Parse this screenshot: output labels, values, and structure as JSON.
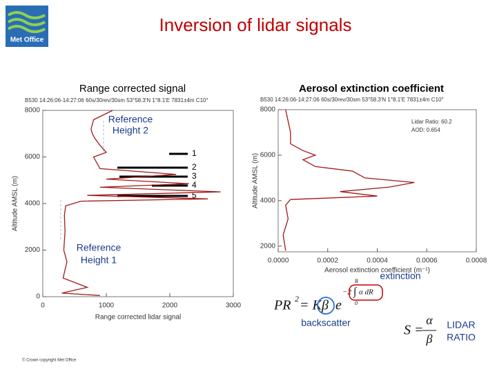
{
  "slide": {
    "title": "Inversion of lidar signals",
    "logo": "Met Office",
    "left_heading": "Range corrected signal",
    "right_heading": "Aerosol extinction coefficient",
    "ref2": [
      "Reference",
      "Height 2"
    ],
    "ref1": [
      "Reference",
      "Height 1"
    ],
    "layer_labels": [
      "1",
      "2",
      "3",
      "4",
      "5"
    ],
    "extinction": "extinction",
    "backscatter": "backscatter",
    "lidar_ratio": [
      "LIDAR",
      "RATIO"
    ],
    "equation": [
      "PR",
      "2",
      "= K",
      "β",
      "e",
      "R",
      "−2",
      "∫",
      "α dR",
      "0"
    ],
    "ratio_equation": [
      "S =",
      "α",
      "β"
    ],
    "copyright": "© Crown copyright   Met Office"
  },
  "chart_data": [
    {
      "type": "line",
      "header": "B530 14:26:06-14:27:06 60s/30rev/30sm 53°58.3'N 1°8.1'E 7831±4m C10°",
      "xlabel": "Range corrected lidar signal",
      "ylabel": "Altitude AMSL (m)",
      "color": "#a01818",
      "x": [
        900,
        300,
        700,
        320,
        380,
        330,
        350,
        340,
        360,
        600,
        2600,
        700,
        2800,
        900,
        2300,
        1000,
        2100,
        900,
        800,
        1000,
        900,
        820,
        780,
        760,
        800,
        1100
      ],
      "y": [
        50,
        150,
        400,
        800,
        1500,
        2000,
        2800,
        3500,
        3900,
        4100,
        4200,
        4350,
        4500,
        4700,
        4850,
        5050,
        5250,
        5500,
        6000,
        6200,
        6500,
        6800,
        7000,
        7200,
        7600,
        8000
      ],
      "xlim": [
        0,
        3000
      ],
      "ylim": [
        0,
        8000
      ],
      "xticks": [
        0,
        1000,
        2000,
        3000
      ],
      "yticks": [
        0,
        2000,
        4000,
        6000,
        8000
      ]
    },
    {
      "type": "line",
      "header": "B530 14:26:06-14:27:06 60s/30rev/30sm 53°58.3'N 1°8.1'E 7831±4m C10°",
      "xlabel": "Aerosol extinction coefficient (m⁻¹)",
      "ylabel": "Altitude AMSL (m)",
      "annotations": [
        "Lidar Ratio: 60.2",
        "AOD: 0.654"
      ],
      "color": "#a01818",
      "x": [
        3e-05,
        2e-05,
        4e-05,
        3e-05,
        5e-05,
        0.0004,
        0.00025,
        0.00045,
        0.00055,
        0.00035,
        0.0003,
        0.00015,
        0.0001,
        0.00015,
        0.0001,
        5e-05,
        5e-05,
        3e-05
      ],
      "y": [
        1800,
        2500,
        3200,
        3800,
        4050,
        4200,
        4400,
        4600,
        4800,
        5000,
        5300,
        5500,
        5800,
        6000,
        6200,
        6500,
        7000,
        8000
      ],
      "xlim": [
        0,
        0.0008
      ],
      "ylim": [
        1750,
        8000
      ],
      "xticks": [
        {
          "value": 0,
          "label": "0.0000"
        },
        {
          "value": 0.0002,
          "label": "0.0002"
        },
        {
          "value": 0.0004,
          "label": "0.0004"
        },
        {
          "value": 0.0006,
          "label": "0.0006"
        },
        {
          "value": 0.0008,
          "label": "0.0008"
        }
      ],
      "yticks": [
        2000,
        4000,
        6000,
        8000
      ]
    }
  ]
}
